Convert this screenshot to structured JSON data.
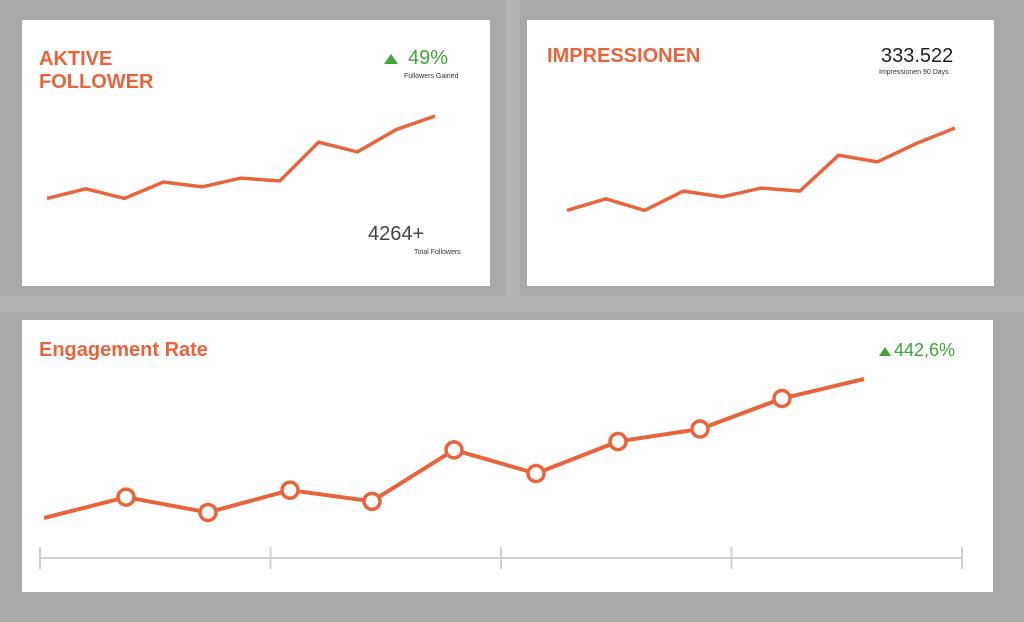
{
  "followers_card": {
    "title_line1": "AKTIVE",
    "title_line2": "FOLLOWER",
    "change_value": "49%",
    "change_label": "Followers Gained",
    "total_value": "4264+",
    "total_label": "Total Followers"
  },
  "impressions_card": {
    "title": "IMPRESSIONEN",
    "value": "333.522",
    "label": "Impressionen 90 Days"
  },
  "engagement_card": {
    "title": "Engagement Rate",
    "change_value": "442,6%"
  },
  "colors": {
    "accent": "#e8643c",
    "positive": "#3fa535",
    "frame": "#a8a8a8",
    "axis": "#d0d0d0"
  },
  "chart_data": [
    {
      "type": "line",
      "name": "followers",
      "x": [
        0,
        1,
        2,
        3,
        4,
        5,
        6,
        7,
        8,
        9,
        10
      ],
      "y": [
        0.15,
        0.25,
        0.15,
        0.32,
        0.27,
        0.36,
        0.33,
        0.73,
        0.63,
        0.86,
        1.0
      ],
      "title": "",
      "xlabel": "",
      "ylabel": "",
      "grid": false
    },
    {
      "type": "line",
      "name": "impressions",
      "x": [
        0,
        1,
        2,
        3,
        4,
        5,
        6,
        7,
        8,
        9,
        10
      ],
      "y": [
        0.15,
        0.27,
        0.15,
        0.35,
        0.29,
        0.38,
        0.35,
        0.72,
        0.65,
        0.84,
        1.0
      ],
      "title": "",
      "xlabel": "",
      "ylabel": "",
      "grid": false
    },
    {
      "type": "line",
      "name": "engagement",
      "x": [
        0,
        1,
        2,
        3,
        4,
        5,
        6,
        7,
        8,
        9,
        10
      ],
      "y": [
        0.0,
        0.15,
        0.04,
        0.2,
        0.12,
        0.49,
        0.32,
        0.55,
        0.64,
        0.86,
        1.0
      ],
      "markers": [
        false,
        true,
        true,
        true,
        true,
        true,
        true,
        true,
        true,
        true,
        false
      ],
      "x_ticks": 5,
      "title": "",
      "xlabel": "",
      "ylabel": "",
      "grid": false
    }
  ]
}
